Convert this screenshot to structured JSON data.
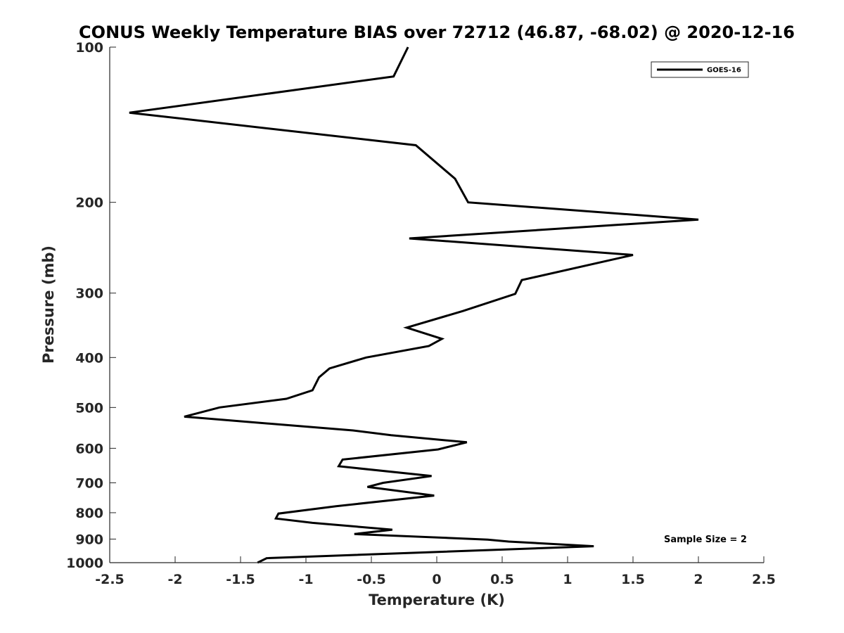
{
  "chart_data": {
    "type": "line",
    "title": "CONUS Weekly Temperature BIAS over 72712 (46.87, -68.02) @ 2020-12-16",
    "xlabel": "Temperature (K)",
    "ylabel": "Pressure (mb)",
    "xlim": [
      -2.5,
      2.5
    ],
    "ylim": [
      100,
      1000
    ],
    "yscale": "log",
    "y_reversed": true,
    "xticks": [
      -2.5,
      -2,
      -1.5,
      -1,
      -0.5,
      0,
      0.5,
      1,
      1.5,
      2,
      2.5
    ],
    "xtick_labels": [
      "-2.5",
      "-2",
      "-1.5",
      "-1",
      "-0.5",
      "0",
      "0.5",
      "1",
      "1.5",
      "2",
      "2.5"
    ],
    "yticks": [
      100,
      200,
      300,
      400,
      500,
      600,
      700,
      800,
      900,
      1000
    ],
    "ytick_labels": [
      "100",
      "200",
      "300",
      "400",
      "500",
      "600",
      "700",
      "800",
      "900",
      "1000"
    ],
    "grid": false,
    "legend_position": "top-right",
    "annotation": "Sample Size = 2",
    "line_color": "#000000",
    "series": [
      {
        "name": "GOES-16",
        "x": [
          -0.22,
          -0.33,
          -2.35,
          -0.16,
          0.14,
          0.24,
          2.0,
          -0.21,
          1.5,
          0.65,
          0.6,
          0.2,
          -0.23,
          0.04,
          -0.06,
          -0.54,
          -0.82,
          -0.9,
          -0.95,
          -1.15,
          -1.66,
          -1.93,
          -0.64,
          -0.35,
          0.23,
          0.01,
          -0.72,
          -0.75,
          -0.04,
          -0.41,
          -0.53,
          -0.02,
          -0.77,
          -1.21,
          -1.23,
          -0.95,
          -0.34,
          -0.63,
          0.39,
          0.55,
          1.2,
          -1.3,
          -1.37
        ],
        "y": [
          100,
          114,
          134,
          155,
          180,
          200,
          216,
          235,
          253,
          283,
          301,
          325,
          350,
          368,
          380,
          400,
          420,
          437,
          463,
          481,
          500,
          521,
          554,
          566,
          584,
          603,
          631,
          650,
          679,
          700,
          713,
          741,
          777,
          803,
          821,
          837,
          863,
          880,
          902,
          910,
          929,
          980,
          1000
        ]
      }
    ]
  }
}
